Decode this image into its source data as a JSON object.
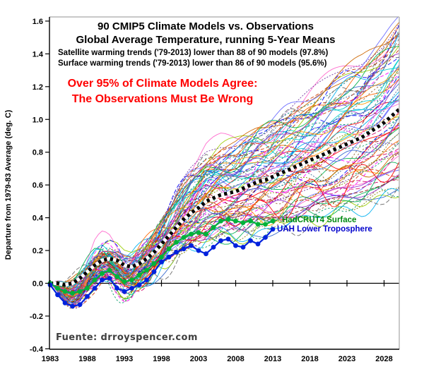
{
  "chart_data": {
    "type": "line",
    "title_line1": "90 CMIP5 Climate Models vs. Observations",
    "title_line2": "Global Average Temperature, running 5-Year Means",
    "subtitle_line1": "Satellite warming trends ('79-2013) lower than 88 of 90 models (97.8%)",
    "subtitle_line2": "Surface warming trends ('79-2013) lower than 86 of 90 models (95.6%)",
    "annotation_line1": "Over 95% of Climate Models Agree:",
    "annotation_line2": "The Observations Must Be Wrong",
    "annotation_color": "#FF0000",
    "source": "Fuente: drroyspencer.com",
    "source_color": "#3F3F3F",
    "ylabel": "Departure from 1979-83 Average (deg. C)",
    "xlabel": "",
    "x_range": [
      1983,
      2030
    ],
    "y_range": [
      -0.4,
      1.6
    ],
    "x_ticks": [
      1983,
      1988,
      1993,
      1998,
      2003,
      2008,
      2013,
      2018,
      2023,
      2028
    ],
    "y_ticks": [
      -0.4,
      -0.2,
      0.0,
      0.2,
      0.4,
      0.6,
      0.8,
      1.0,
      1.2,
      1.4,
      1.6
    ],
    "grid": false,
    "axis_color": "#000000",
    "border_color": "#A6A6A6",
    "series": [
      {
        "name": "Multi-model mean",
        "style": "thick black line with white dashes (square-dash look)",
        "color": "#000000",
        "dash_fill": "#FFFFFF",
        "start_year": 1983,
        "values": [
          0.0,
          0.0,
          -0.01,
          0.0,
          0.03,
          0.07,
          0.11,
          0.14,
          0.15,
          0.14,
          0.11,
          0.1,
          0.12,
          0.15,
          0.19,
          0.24,
          0.29,
          0.34,
          0.39,
          0.43,
          0.46,
          0.5,
          0.52,
          0.54,
          0.55,
          0.56,
          0.58,
          0.6,
          0.62,
          0.63,
          0.65,
          0.67,
          0.69,
          0.71,
          0.73,
          0.75,
          0.77,
          0.79,
          0.81,
          0.83,
          0.85,
          0.87,
          0.89,
          0.92,
          0.95,
          0.98,
          1.02,
          1.06
        ]
      },
      {
        "name": "HadCRUT4 Surface",
        "style": "green line with circular markers",
        "color": "#00B23A",
        "label_color": "#008A12",
        "marker": "circle",
        "start_year": 1983,
        "values": [
          0.0,
          -0.03,
          -0.05,
          -0.06,
          -0.05,
          -0.03,
          0.02,
          0.06,
          0.08,
          0.04,
          0.01,
          0.02,
          0.05,
          0.08,
          0.12,
          0.16,
          0.21,
          0.25,
          0.28,
          0.3,
          0.31,
          0.3,
          0.34,
          0.38,
          0.39,
          0.38,
          0.37,
          0.38,
          0.36,
          0.36,
          0.38
        ]
      },
      {
        "name": "UAH Lower Troposphere",
        "style": "blue line with circular markers",
        "color": "#0022DD",
        "label_color": "#0000CC",
        "marker": "circle",
        "start_year": 1983,
        "values": [
          -0.01,
          -0.07,
          -0.12,
          -0.14,
          -0.13,
          -0.08,
          -0.03,
          0.02,
          0.03,
          -0.03,
          -0.05,
          -0.03,
          -0.01,
          0.02,
          0.07,
          0.13,
          0.16,
          0.19,
          0.21,
          0.23,
          0.2,
          0.18,
          0.22,
          0.26,
          0.27,
          0.23,
          0.22,
          0.26,
          0.24,
          0.28,
          0.33
        ]
      }
    ],
    "model_ensemble": {
      "count": 90,
      "start_year": 1983,
      "end_year": 2030,
      "start_value": 0.0,
      "end_value_range": [
        0.55,
        1.62
      ],
      "mid_1993_spread": [
        -0.25,
        0.35
      ],
      "note": "90 individual CMIP5 model runs drawn as thin multicoloured spaghetti lines (procedurally recreated)",
      "palette": [
        "#FF0000",
        "#0000FF",
        "#00B0F0",
        "#7030A0",
        "#FF6600",
        "#00B050",
        "#FF00FF",
        "#996633",
        "#00CCCC",
        "#CC0066",
        "#6666FF",
        "#808000",
        "#FF9900",
        "#3366CC",
        "#CC3300",
        "#009966",
        "#9933CC",
        "#666666",
        "#FF66CC",
        "#336699",
        "#99CC00",
        "#CC6600",
        "#800000",
        "#008080"
      ]
    }
  }
}
